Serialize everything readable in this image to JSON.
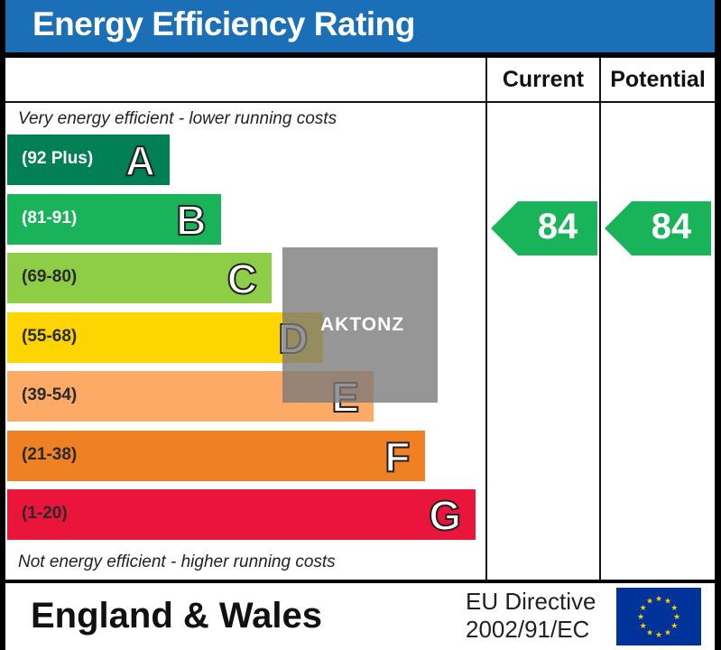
{
  "title": "Energy Efficiency Rating",
  "columns": {
    "current": "Current",
    "potential": "Potential"
  },
  "notes": {
    "top": "Very energy efficient - lower running costs",
    "bottom": "Not energy efficient - higher running costs"
  },
  "chart_data": {
    "type": "bar",
    "title": "Energy Efficiency Rating",
    "categories": [
      "A",
      "B",
      "C",
      "D",
      "E",
      "F",
      "G"
    ],
    "bands": [
      {
        "letter": "A",
        "range": "(92 Plus)",
        "color": "#008054"
      },
      {
        "letter": "B",
        "range": "(81-91)",
        "color": "#19b459"
      },
      {
        "letter": "C",
        "range": "(69-80)",
        "color": "#8dce46"
      },
      {
        "letter": "D",
        "range": "(55-68)",
        "color": "#ffd500"
      },
      {
        "letter": "E",
        "range": "(39-54)",
        "color": "#fcaa65"
      },
      {
        "letter": "F",
        "range": "(21-38)",
        "color": "#ef8023"
      },
      {
        "letter": "G",
        "range": "(1-20)",
        "color": "#e9153b"
      }
    ],
    "current": {
      "value": 84,
      "band": "B",
      "color": "#19b459"
    },
    "potential": {
      "value": 84,
      "band": "B",
      "color": "#19b459"
    }
  },
  "footer": {
    "region": "England & Wales",
    "directive_line1": "EU Directive",
    "directive_line2": "2002/91/EC",
    "flag_color": "#003399",
    "star_color": "#ffcc00"
  },
  "watermark": {
    "text": "AKTONZ"
  }
}
